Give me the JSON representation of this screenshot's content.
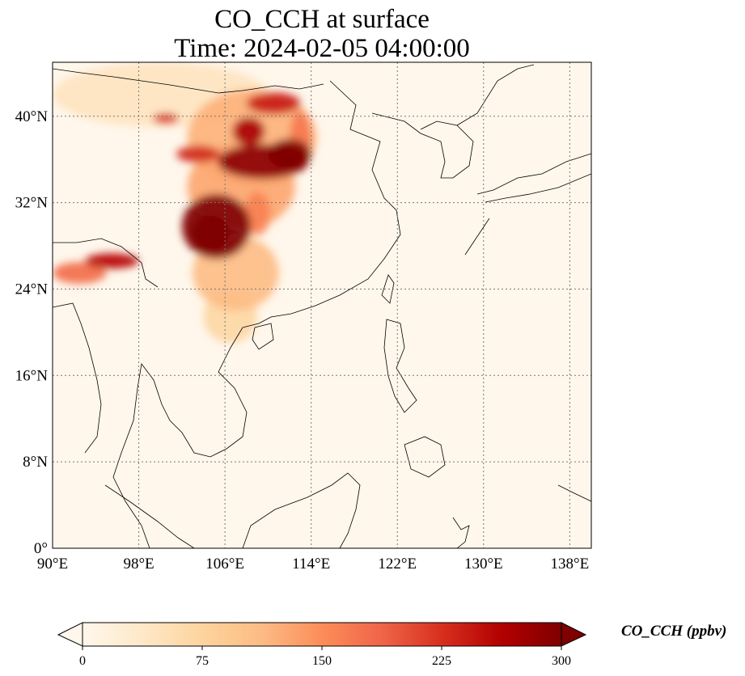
{
  "title": {
    "line1": "CO_CCH at surface",
    "line2": "Time: 2024-02-05 04:00:00"
  },
  "map": {
    "lon_range": [
      90,
      140
    ],
    "lat_range": [
      0,
      45
    ],
    "lon_ticks": [
      90,
      98,
      106,
      114,
      122,
      130,
      138
    ],
    "lon_tick_labels": [
      "90°E",
      "98°E",
      "106°E",
      "114°E",
      "122°E",
      "130°E",
      "138°E"
    ],
    "lat_ticks": [
      0,
      8,
      16,
      24,
      32,
      40
    ],
    "lat_tick_labels": [
      "0°",
      "8°N",
      "16°N",
      "24°N",
      "32°N",
      "40°N"
    ],
    "gridlines": true,
    "plumes": [
      {
        "lon": 105.2,
        "lat": 29.8,
        "rlon": 3.2,
        "rlat": 3.0,
        "value": 300
      },
      {
        "lon": 104.6,
        "lat": 29.2,
        "rlon": 1.8,
        "rlat": 1.6,
        "value": 320
      },
      {
        "lon": 109.5,
        "lat": 35.8,
        "rlon": 4.2,
        "rlat": 1.6,
        "value": 290
      },
      {
        "lon": 112.0,
        "lat": 36.5,
        "rlon": 2.0,
        "rlat": 1.4,
        "value": 300
      },
      {
        "lon": 108.2,
        "lat": 38.6,
        "rlon": 1.5,
        "rlat": 1.3,
        "value": 270
      },
      {
        "lon": 110.5,
        "lat": 41.2,
        "rlon": 2.5,
        "rlat": 1.0,
        "value": 240
      },
      {
        "lon": 103.5,
        "lat": 36.5,
        "rlon": 2.0,
        "rlat": 0.8,
        "value": 230
      },
      {
        "lon": 107.5,
        "lat": 33.5,
        "rlon": 5.0,
        "rlat": 4.0,
        "value": 130
      },
      {
        "lon": 108.5,
        "lat": 38.0,
        "rlon": 6.0,
        "rlat": 4.5,
        "value": 120
      },
      {
        "lon": 107.0,
        "lat": 25.5,
        "rlon": 4.0,
        "rlat": 3.5,
        "value": 110
      },
      {
        "lon": 106.5,
        "lat": 21.5,
        "rlon": 2.5,
        "rlat": 2.5,
        "value": 70
      },
      {
        "lon": 100.0,
        "lat": 42.0,
        "rlon": 10.0,
        "rlat": 3.0,
        "value": 45
      },
      {
        "lon": 95.5,
        "lat": 26.6,
        "rlon": 2.5,
        "rlat": 0.7,
        "value": 260
      },
      {
        "lon": 92.5,
        "lat": 25.5,
        "rlon": 2.5,
        "rlat": 1.0,
        "value": 180
      },
      {
        "lon": 100.5,
        "lat": 39.8,
        "rlon": 1.2,
        "rlat": 0.5,
        "value": 220
      },
      {
        "lon": 109.0,
        "lat": 31.0,
        "rlon": 1.2,
        "rlat": 2.0,
        "value": 160
      },
      {
        "lon": 113.0,
        "lat": 38.0,
        "rlon": 1.0,
        "rlat": 2.5,
        "value": 170
      }
    ]
  },
  "colorbar": {
    "label": "CO_CCH (ppbv)",
    "min": 0,
    "max": 300,
    "ticks": [
      0,
      75,
      150,
      225,
      300
    ],
    "tick_labels": [
      "0",
      "75",
      "150",
      "225",
      "300"
    ],
    "extend": "both",
    "colormap": "OrRd",
    "colors": [
      "#fff7ec",
      "#fee8c8",
      "#fdd49e",
      "#fdbb84",
      "#fc8d59",
      "#ef6548",
      "#d7301f",
      "#b30000",
      "#7f0000"
    ]
  }
}
